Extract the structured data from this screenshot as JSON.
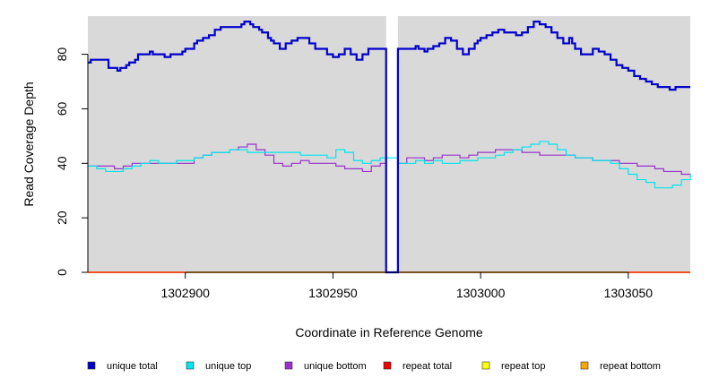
{
  "chart_data": {
    "type": "line",
    "title": "",
    "xlabel": "Coordinate in Reference Genome",
    "ylabel": "Read Coverage Depth",
    "xlim": [
      1302867,
      1303071
    ],
    "ylim": [
      0,
      94
    ],
    "xticks": [
      1302900,
      1302950,
      1303000,
      1303050
    ],
    "xtick_labels": [
      "1302900",
      "1302950",
      "1303000",
      "1303050"
    ],
    "yticks": [
      0,
      20,
      40,
      60,
      80
    ],
    "ytick_labels": [
      "0",
      "20",
      "40",
      "60",
      "80"
    ],
    "grid": false,
    "background": "#d9d9d9",
    "gap_bar": {
      "x": [
        1302968,
        1302972
      ],
      "color": "#ffffff"
    },
    "legend_position": "bottom",
    "series": [
      {
        "name": "unique total",
        "color": "#0000cd",
        "width": 2.2,
        "x": [
          1302867,
          1302868,
          1302869,
          1302874,
          1302877,
          1302878,
          1302880,
          1302881,
          1302883,
          1302884,
          1302888,
          1302889,
          1302891,
          1302893,
          1302895,
          1302897,
          1302899,
          1302900,
          1302903,
          1302904,
          1302906,
          1302908,
          1302910,
          1302912,
          1302915,
          1302917,
          1302919,
          1302920,
          1302922,
          1302923,
          1302925,
          1302926,
          1302928,
          1302929,
          1302930,
          1302932,
          1302934,
          1302936,
          1302938,
          1302940,
          1302942,
          1302944,
          1302946,
          1302948,
          1302950,
          1302952,
          1302954,
          1302956,
          1302958,
          1302960,
          1302962,
          1302964,
          1302966,
          1302967,
          1302968,
          1302970,
          1302972,
          1302973,
          1302976,
          1302978,
          1302979,
          1302981,
          1302982,
          1302984,
          1302986,
          1302988,
          1302990,
          1302992,
          1302994,
          1302996,
          1302998,
          1302999,
          1303000,
          1303002,
          1303004,
          1303006,
          1303008,
          1303010,
          1303012,
          1303014,
          1303016,
          1303018,
          1303019,
          1303020,
          1303022,
          1303024,
          1303026,
          1303028,
          1303030,
          1303031,
          1303032,
          1303034,
          1303036,
          1303038,
          1303040,
          1303042,
          1303044,
          1303046,
          1303048,
          1303050,
          1303052,
          1303054,
          1303056,
          1303058,
          1303060,
          1303062,
          1303064,
          1303066,
          1303068,
          1303070,
          1303071
        ],
        "y": [
          77,
          78,
          78,
          75,
          74,
          75,
          76,
          77,
          78,
          80,
          81,
          80,
          80,
          79,
          80,
          80,
          81,
          82,
          84,
          85,
          86,
          87,
          89,
          90,
          90,
          90,
          91,
          92,
          91,
          90,
          89,
          88,
          86,
          85,
          84,
          82,
          84,
          85,
          86,
          86,
          84,
          82,
          82,
          80,
          79,
          80,
          82,
          80,
          78,
          80,
          82,
          82,
          82,
          82,
          0,
          0,
          82,
          82,
          82,
          83,
          82,
          81,
          82,
          83,
          84,
          86,
          85,
          82,
          80,
          82,
          84,
          85,
          86,
          87,
          88,
          89,
          88,
          88,
          87,
          88,
          90,
          92,
          92,
          91,
          90,
          88,
          86,
          84,
          86,
          84,
          82,
          80,
          80,
          82,
          81,
          80,
          78,
          76,
          75,
          74,
          72,
          71,
          70,
          69,
          68,
          68,
          67,
          68,
          68,
          68,
          68
        ]
      },
      {
        "name": "unique top",
        "color": "#00e5ee",
        "width": 1.2,
        "x": [
          1302867,
          1302870,
          1302873,
          1302876,
          1302879,
          1302882,
          1302885,
          1302888,
          1302891,
          1302894,
          1302897,
          1302900,
          1302903,
          1302906,
          1302909,
          1302912,
          1302915,
          1302918,
          1302921,
          1302924,
          1302927,
          1302930,
          1302933,
          1302936,
          1302939,
          1302942,
          1302945,
          1302948,
          1302951,
          1302954,
          1302957,
          1302960,
          1302963,
          1302966,
          1302968,
          1302972,
          1302975,
          1302978,
          1302981,
          1302984,
          1302987,
          1302990,
          1302993,
          1302996,
          1302999,
          1303002,
          1303005,
          1303008,
          1303011,
          1303014,
          1303017,
          1303020,
          1303023,
          1303026,
          1303029,
          1303032,
          1303035,
          1303038,
          1303041,
          1303044,
          1303047,
          1303050,
          1303053,
          1303056,
          1303059,
          1303062,
          1303065,
          1303068,
          1303071
        ],
        "y": [
          39,
          38,
          37,
          37,
          38,
          39,
          40,
          41,
          40,
          40,
          41,
          41,
          42,
          43,
          44,
          44,
          45,
          45,
          44,
          44,
          44,
          44,
          44,
          44,
          43,
          43,
          43,
          42,
          45,
          44,
          41,
          40,
          41,
          42,
          42,
          40,
          40,
          41,
          40,
          41,
          40,
          40,
          41,
          41,
          42,
          42,
          43,
          44,
          45,
          46,
          47,
          48,
          47,
          45,
          43,
          42,
          42,
          41,
          41,
          40,
          38,
          36,
          34,
          33,
          31,
          31,
          32,
          34,
          36
        ]
      },
      {
        "name": "unique bottom",
        "color": "#9932cc",
        "width": 1.2,
        "x": [
          1302867,
          1302870,
          1302873,
          1302876,
          1302879,
          1302882,
          1302885,
          1302888,
          1302891,
          1302894,
          1302897,
          1302900,
          1302903,
          1302906,
          1302909,
          1302912,
          1302915,
          1302918,
          1302921,
          1302924,
          1302927,
          1302930,
          1302933,
          1302936,
          1302939,
          1302942,
          1302945,
          1302948,
          1302951,
          1302954,
          1302957,
          1302960,
          1302963,
          1302966,
          1302968,
          1302972,
          1302975,
          1302978,
          1302981,
          1302984,
          1302987,
          1302990,
          1302993,
          1302996,
          1302999,
          1303002,
          1303005,
          1303008,
          1303011,
          1303014,
          1303017,
          1303020,
          1303023,
          1303026,
          1303029,
          1303032,
          1303035,
          1303038,
          1303041,
          1303044,
          1303047,
          1303050,
          1303053,
          1303056,
          1303059,
          1303062,
          1303065,
          1303068,
          1303071
        ],
        "y": [
          39,
          39,
          39,
          38,
          39,
          40,
          40,
          40,
          40,
          40,
          40,
          40,
          42,
          43,
          44,
          44,
          45,
          46,
          47,
          45,
          43,
          40,
          39,
          40,
          41,
          40,
          40,
          40,
          39,
          38,
          38,
          37,
          39,
          40,
          0,
          40,
          42,
          42,
          41,
          42,
          43,
          43,
          42,
          43,
          44,
          44,
          45,
          45,
          45,
          44,
          44,
          43,
          43,
          43,
          43,
          42,
          42,
          41,
          41,
          41,
          40,
          40,
          39,
          39,
          38,
          37,
          37,
          36,
          35
        ]
      },
      {
        "name": "repeat total",
        "color": "#ee0000",
        "width": 1.2,
        "x": [
          1302867,
          1303071
        ],
        "y": [
          0,
          0
        ]
      },
      {
        "name": "repeat top",
        "color": "#ffff00",
        "width": 1.2,
        "x": [
          1302867,
          1303071
        ],
        "y": [
          0,
          0
        ]
      },
      {
        "name": "repeat bottom",
        "color": "#ffa500",
        "width": 1.4,
        "x": [
          1302867,
          1303071
        ],
        "y": [
          0,
          0
        ]
      }
    ]
  }
}
